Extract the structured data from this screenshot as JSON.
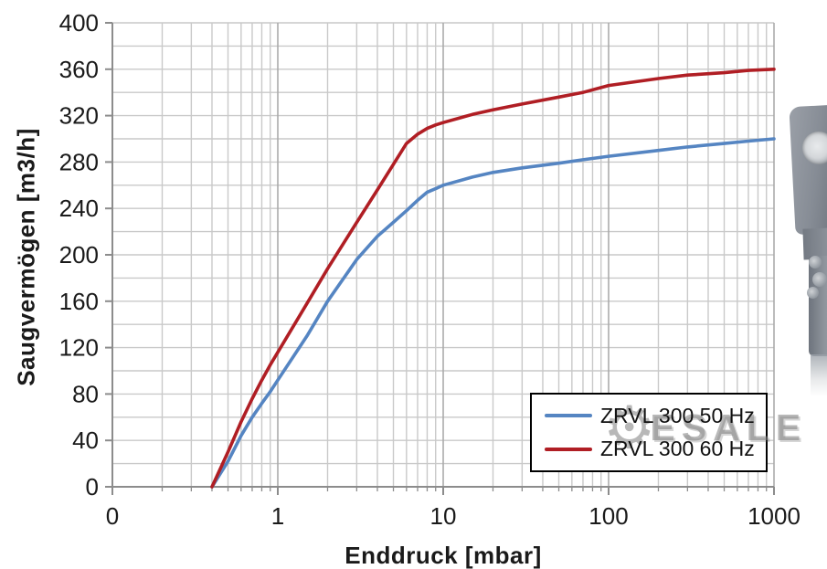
{
  "chart_data": {
    "type": "line",
    "title": "",
    "xlabel": "Enddruck [mbar]",
    "ylabel": "Saugvermögen [m3/h]",
    "x_scale": "log",
    "x_range": [
      0.1,
      1000
    ],
    "x_ticks": {
      "values": [
        0.1,
        1,
        10,
        100,
        1000
      ],
      "labels": [
        "0",
        "1",
        "10",
        "100",
        "1000"
      ]
    },
    "y_axis": {
      "min": 0,
      "max": 400,
      "major_step": 40,
      "minor_step": 20
    },
    "y_ticks": [
      0,
      40,
      80,
      120,
      160,
      200,
      240,
      280,
      320,
      360,
      400
    ],
    "grid": true,
    "legend_position": "bottom-right",
    "x": [
      0.4,
      0.5,
      0.6,
      0.7,
      0.8,
      0.9,
      1,
      1.5,
      2,
      3,
      4,
      5,
      6,
      7,
      8,
      9,
      10,
      15,
      20,
      30,
      50,
      70,
      100,
      200,
      300,
      500,
      700,
      1000
    ],
    "series": [
      {
        "name": "ZRVL 300 50 Hz",
        "color": "#5585c2",
        "values": [
          0,
          22,
          44,
          60,
          72,
          82,
          92,
          130,
          160,
          196,
          216,
          228,
          238,
          247,
          254,
          257,
          260,
          267,
          271,
          275,
          279,
          282,
          285,
          290,
          293,
          296,
          298,
          300
        ]
      },
      {
        "name": "ZRVL 300 60 Hz",
        "color": "#b01e24",
        "values": [
          0,
          30,
          56,
          76,
          92,
          105,
          116,
          158,
          188,
          228,
          256,
          278,
          296,
          304,
          309,
          312,
          314,
          321,
          325,
          330,
          336,
          340,
          346,
          352,
          355,
          357,
          359,
          360
        ]
      }
    ]
  },
  "watermark": {
    "gear_icon": "⚙",
    "text": "ESALE"
  },
  "colors": {
    "grid_minor": "#c9c9c9",
    "grid_major": "#ababab",
    "axis": "#8c8c8c",
    "text": "#1a1a1a",
    "legend_border": "#000000"
  }
}
